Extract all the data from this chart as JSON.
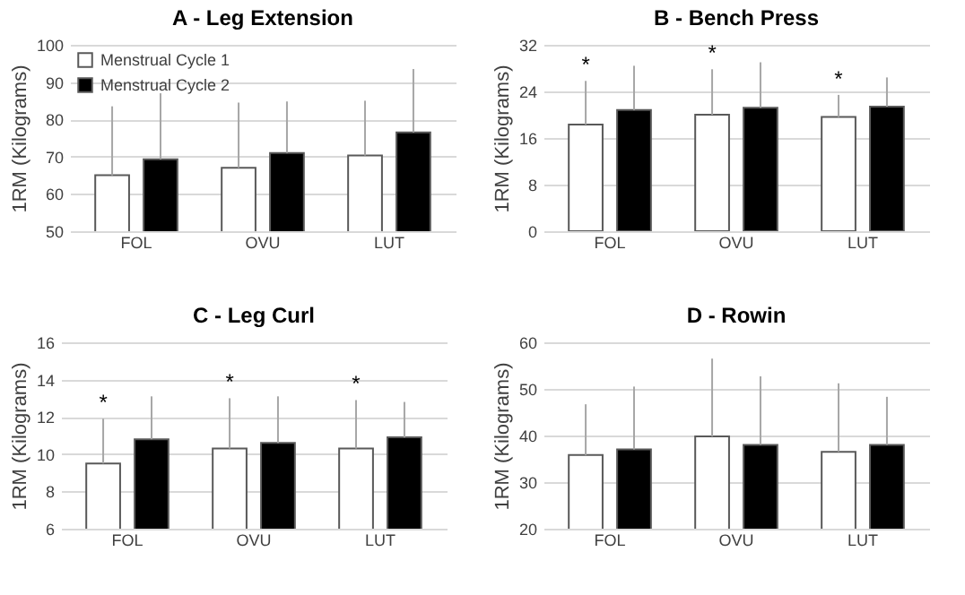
{
  "chart_data": [
    {
      "type": "bar",
      "title": "A - Leg Extension",
      "ylabel": "1RM (Kilograms)",
      "categories": [
        "FOL",
        "OVU",
        "LUT"
      ],
      "ylim": [
        50,
        100
      ],
      "yticks": [
        50,
        60,
        70,
        80,
        90,
        100
      ],
      "grid": "y",
      "legend": "top left",
      "series": [
        {
          "name": "Menstrual Cycle 1",
          "color": "#ffffff",
          "values": [
            65,
            67,
            70.3
          ],
          "errors": [
            [
              65,
              83.5
            ],
            [
              67,
              84.5
            ],
            [
              70.3,
              85
            ]
          ]
        },
        {
          "name": "Menstrual Cycle 2",
          "color": "#000000",
          "values": [
            69.3,
            71,
            76.5
          ],
          "errors": [
            [
              69.3,
              87
            ],
            [
              71,
              84.8
            ],
            [
              76.5,
              93.5
            ]
          ]
        }
      ]
    },
    {
      "type": "bar",
      "title": "B - Bench Press",
      "ylabel": "1RM (Kilograms)",
      "categories": [
        "FOL",
        "OVU",
        "LUT"
      ],
      "ylim": [
        0,
        32
      ],
      "yticks": [
        0,
        8,
        16,
        24,
        32
      ],
      "grid": "y",
      "series": [
        {
          "color": "#ffffff",
          "values": [
            18.3,
            20,
            19.6
          ],
          "errors": [
            [
              18.3,
              25.8
            ],
            [
              20,
              27.8
            ],
            [
              19.6,
              23.4
            ]
          ]
        },
        {
          "color": "#000000",
          "values": [
            20.8,
            21.2,
            21.4
          ],
          "errors": [
            [
              20.8,
              28.4
            ],
            [
              21.2,
              29
            ],
            [
              21.4,
              26.4
            ]
          ]
        }
      ],
      "annotations": [
        "*",
        "*",
        "*"
      ]
    },
    {
      "type": "bar",
      "title": "C - Leg Curl",
      "ylabel": "1RM (Kilograms)",
      "categories": [
        "FOL",
        "OVU",
        "LUT"
      ],
      "ylim": [
        6,
        16
      ],
      "yticks": [
        6,
        8,
        10,
        12,
        14,
        16
      ],
      "grid": "y",
      "series": [
        {
          "color": "#ffffff",
          "values": [
            9.5,
            10.3,
            10.3
          ],
          "errors": [
            [
              9.5,
              11.9
            ],
            [
              10.3,
              13
            ],
            [
              10.3,
              12.9
            ]
          ]
        },
        {
          "color": "#000000",
          "values": [
            10.8,
            10.6,
            10.9
          ],
          "errors": [
            [
              10.8,
              13.1
            ],
            [
              10.6,
              13.1
            ],
            [
              10.9,
              12.8
            ]
          ]
        }
      ],
      "annotations": [
        "*",
        "*",
        "*"
      ]
    },
    {
      "type": "bar",
      "title": "D - Rowin",
      "ylabel": "1RM (Kilograms)",
      "categories": [
        "FOL",
        "OVU",
        "LUT"
      ],
      "ylim": [
        20,
        60
      ],
      "yticks": [
        20,
        30,
        40,
        50,
        60
      ],
      "grid": "y",
      "series": [
        {
          "color": "#ffffff",
          "values": [
            35.8,
            39.8,
            36.5
          ],
          "errors": [
            [
              35.8,
              46.7
            ],
            [
              39.8,
              56.5
            ],
            [
              36.5,
              51.2
            ]
          ]
        },
        {
          "color": "#000000",
          "values": [
            37,
            38,
            38
          ],
          "errors": [
            [
              37,
              50.5
            ],
            [
              38,
              52.7
            ],
            [
              38,
              48.3
            ]
          ]
        }
      ]
    }
  ]
}
